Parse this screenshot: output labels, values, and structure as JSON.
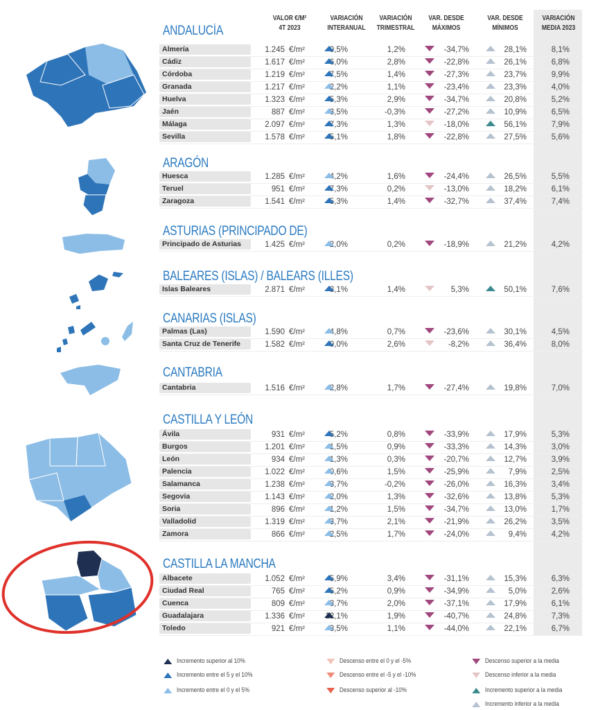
{
  "headers": {
    "valor": "VALOR €/M² 4T 2023",
    "interanual": "VARIACIÓN INTERANUAL",
    "trimestral": "VARIACIÓN TRIMESTRAL",
    "maximos": "VAR. DESDE MÁXIMOS",
    "minimos": "VAR. DESDE MÍNIMOS",
    "media": "VARIACIÓN MEDIA 2023"
  },
  "unit": "€/m²",
  "colors": {
    "title": "#2a7ac0",
    "inc_gt10": "#1f2f52",
    "inc_5_10": "#2e74b8",
    "inc_0_5": "#8cbde6",
    "desc_0_5": "#f3c3b8",
    "desc_5_10": "#ee8b78",
    "desc_gt10": "#e8604f",
    "desc_above_avg": "#a0477e",
    "desc_below_avg": "#e5c6c6",
    "inc_above_avg": "#3d8a8e",
    "inc_below_avg": "#b5c2cf",
    "highlight_circle": "#e0302a"
  },
  "sections": [
    {
      "title": "ANDALUCÍA",
      "rows": [
        [
          "Almería",
          "1.245",
          "9,5%",
          "1,2%",
          "-34,7%",
          "28,1%",
          "8,1%",
          "inc_5_10",
          "desc_above_avg",
          "inc_below_avg"
        ],
        [
          "Cádiz",
          "1.617",
          "6,0%",
          "2,8%",
          "-22,8%",
          "26,1%",
          "6,8%",
          "inc_5_10",
          "desc_above_avg",
          "inc_below_avg"
        ],
        [
          "Córdoba",
          "1.219",
          "7,5%",
          "1,4%",
          "-27,3%",
          "23,7%",
          "9,9%",
          "inc_5_10",
          "desc_above_avg",
          "inc_below_avg"
        ],
        [
          "Granada",
          "1.217",
          "2,2%",
          "1,1%",
          "-23,4%",
          "23,3%",
          "4,0%",
          "inc_0_5",
          "desc_above_avg",
          "inc_below_avg"
        ],
        [
          "Huelva",
          "1.323",
          "5,3%",
          "2,9%",
          "-34,7%",
          "20,8%",
          "5,2%",
          "inc_5_10",
          "desc_above_avg",
          "inc_below_avg"
        ],
        [
          "Jaén",
          "887",
          "3,5%",
          "-0,3%",
          "-27,2%",
          "10,9%",
          "6,5%",
          "inc_0_5",
          "desc_above_avg",
          "inc_below_avg"
        ],
        [
          "Málaga",
          "2.097",
          "7,3%",
          "1,3%",
          "-18,0%",
          "56,1%",
          "7,9%",
          "inc_5_10",
          "desc_below_avg",
          "inc_above_avg"
        ],
        [
          "Sevilla",
          "1.578",
          "5,1%",
          "1,8%",
          "-22,8%",
          "27,5%",
          "5,6%",
          "inc_5_10",
          "desc_above_avg",
          "inc_below_avg"
        ]
      ]
    },
    {
      "title": "ARAGÓN",
      "rows": [
        [
          "Huesca",
          "1.285",
          "4,2%",
          "1,6%",
          "-24,4%",
          "26,5%",
          "5,5%",
          "inc_0_5",
          "desc_above_avg",
          "inc_below_avg"
        ],
        [
          "Teruel",
          "951",
          "7,3%",
          "0,2%",
          "-13,0%",
          "18,2%",
          "6,1%",
          "inc_5_10",
          "desc_below_avg",
          "inc_below_avg"
        ],
        [
          "Zaragoza",
          "1.541",
          "5,3%",
          "1,4%",
          "-32,7%",
          "37,4%",
          "7,4%",
          "inc_5_10",
          "desc_above_avg",
          "inc_below_avg"
        ]
      ]
    },
    {
      "title": "ASTURIAS (PRINCIPADO DE)",
      "rows": [
        [
          "Principado de Asturias",
          "1.425",
          "2,0%",
          "0,2%",
          "-18,9%",
          "21,2%",
          "4,2%",
          "inc_0_5",
          "desc_above_avg",
          "inc_below_avg"
        ]
      ]
    },
    {
      "title": "BALEARES (ISLAS) / BALEARS (ILLES)",
      "rows": [
        [
          "Islas Baleares",
          "2.871",
          "8,1%",
          "1,4%",
          "5,3%",
          "50,1%",
          "7,6%",
          "inc_5_10",
          "desc_below_avg",
          "inc_above_avg"
        ]
      ]
    },
    {
      "title": "CANARIAS (ISLAS)",
      "rows": [
        [
          "Palmas (Las)",
          "1.590",
          "4,8%",
          "0,7%",
          "-23,6%",
          "30,1%",
          "4,5%",
          "inc_0_5",
          "desc_above_avg",
          "inc_below_avg"
        ],
        [
          "Santa Cruz de Tenerife",
          "1.582",
          "9,0%",
          "2,6%",
          "-8,2%",
          "36,4%",
          "8,0%",
          "inc_5_10",
          "desc_below_avg",
          "inc_below_avg"
        ]
      ]
    },
    {
      "title": "CANTABRIA",
      "rows": [
        [
          "Cantabria",
          "1.516",
          "2,8%",
          "1,7%",
          "-27,4%",
          "19,8%",
          "7,0%",
          "inc_0_5",
          "desc_above_avg",
          "inc_below_avg"
        ]
      ]
    },
    {
      "title": "CASTILLA Y LEÓN",
      "rows": [
        [
          "Ávila",
          "931",
          "5,2%",
          "0,8%",
          "-33,9%",
          "17,9%",
          "5,3%",
          "inc_5_10",
          "desc_above_avg",
          "inc_below_avg"
        ],
        [
          "Burgos",
          "1.201",
          "1,5%",
          "0,9%",
          "-33,3%",
          "14,3%",
          "3,0%",
          "inc_0_5",
          "desc_above_avg",
          "inc_below_avg"
        ],
        [
          "León",
          "934",
          "1,3%",
          "0,3%",
          "-20,7%",
          "12,7%",
          "3,9%",
          "inc_0_5",
          "desc_above_avg",
          "inc_below_avg"
        ],
        [
          "Palencia",
          "1.022",
          "0,6%",
          "1,5%",
          "-25,9%",
          "7,9%",
          "2,5%",
          "inc_0_5",
          "desc_above_avg",
          "inc_below_avg"
        ],
        [
          "Salamanca",
          "1.238",
          "3,7%",
          "-0,2%",
          "-26,0%",
          "16,3%",
          "3,4%",
          "inc_0_5",
          "desc_above_avg",
          "inc_below_avg"
        ],
        [
          "Segovia",
          "1.143",
          "2,0%",
          "1,3%",
          "-32,6%",
          "13,8%",
          "5,3%",
          "inc_0_5",
          "desc_above_avg",
          "inc_below_avg"
        ],
        [
          "Soria",
          "896",
          "1,2%",
          "1,5%",
          "-34,7%",
          "13,0%",
          "1,7%",
          "inc_0_5",
          "desc_above_avg",
          "inc_below_avg"
        ],
        [
          "Valladolid",
          "1.319",
          "3,7%",
          "2,1%",
          "-21,9%",
          "26,2%",
          "3,5%",
          "inc_0_5",
          "desc_above_avg",
          "inc_below_avg"
        ],
        [
          "Zamora",
          "866",
          "2,5%",
          "1,7%",
          "-24,0%",
          "9,4%",
          "4,2%",
          "inc_0_5",
          "desc_above_avg",
          "inc_below_avg"
        ]
      ]
    },
    {
      "title": "CASTILLA LA MANCHA",
      "rows": [
        [
          "Albacete",
          "1.052",
          "5,9%",
          "3,4%",
          "-31,1%",
          "15,3%",
          "6,3%",
          "inc_5_10",
          "desc_above_avg",
          "inc_below_avg"
        ],
        [
          "Ciudad Real",
          "765",
          "5,2%",
          "0,9%",
          "-34,9%",
          "5,0%",
          "2,6%",
          "inc_5_10",
          "desc_above_avg",
          "inc_below_avg"
        ],
        [
          "Cuenca",
          "809",
          "3,7%",
          "2,0%",
          "-37,1%",
          "17,9%",
          "6,1%",
          "inc_0_5",
          "desc_above_avg",
          "inc_below_avg"
        ],
        [
          "Guadalajara",
          "1.336",
          "12,1%",
          "1,9%",
          "-40,7%",
          "24,8%",
          "7,3%",
          "inc_gt10",
          "desc_above_avg",
          "inc_below_avg"
        ],
        [
          "Toledo",
          "921",
          "3,5%",
          "1,1%",
          "-44,0%",
          "22,1%",
          "6,7%",
          "inc_0_5",
          "desc_above_avg",
          "inc_below_avg"
        ]
      ]
    }
  ],
  "legend": [
    {
      "label": "Incremento superior al 10%",
      "key": "inc_gt10",
      "dir": "up"
    },
    {
      "label": "Incremento entre el 5 y el 10%",
      "key": "inc_5_10",
      "dir": "up"
    },
    {
      "label": "Incremento entre el 0 y el 5%",
      "key": "inc_0_5",
      "dir": "up"
    },
    {
      "label": "Descenso entre el 0 y el -5%",
      "key": "desc_0_5",
      "dir": "down"
    },
    {
      "label": "Descenso entre el -5 y el -10%",
      "key": "desc_5_10",
      "dir": "down"
    },
    {
      "label": "Descenso superior al -10%",
      "key": "desc_gt10",
      "dir": "down"
    },
    {
      "label": "Descenso superior a la media",
      "key": "desc_above_avg",
      "dir": "down"
    },
    {
      "label": "Descenso inferior a la media",
      "key": "desc_below_avg",
      "dir": "down"
    },
    {
      "label": "Incremento superior a la media",
      "key": "inc_above_avg",
      "dir": "up"
    },
    {
      "label": "Incremento inferior a la media",
      "key": "inc_below_avg",
      "dir": "up"
    }
  ]
}
